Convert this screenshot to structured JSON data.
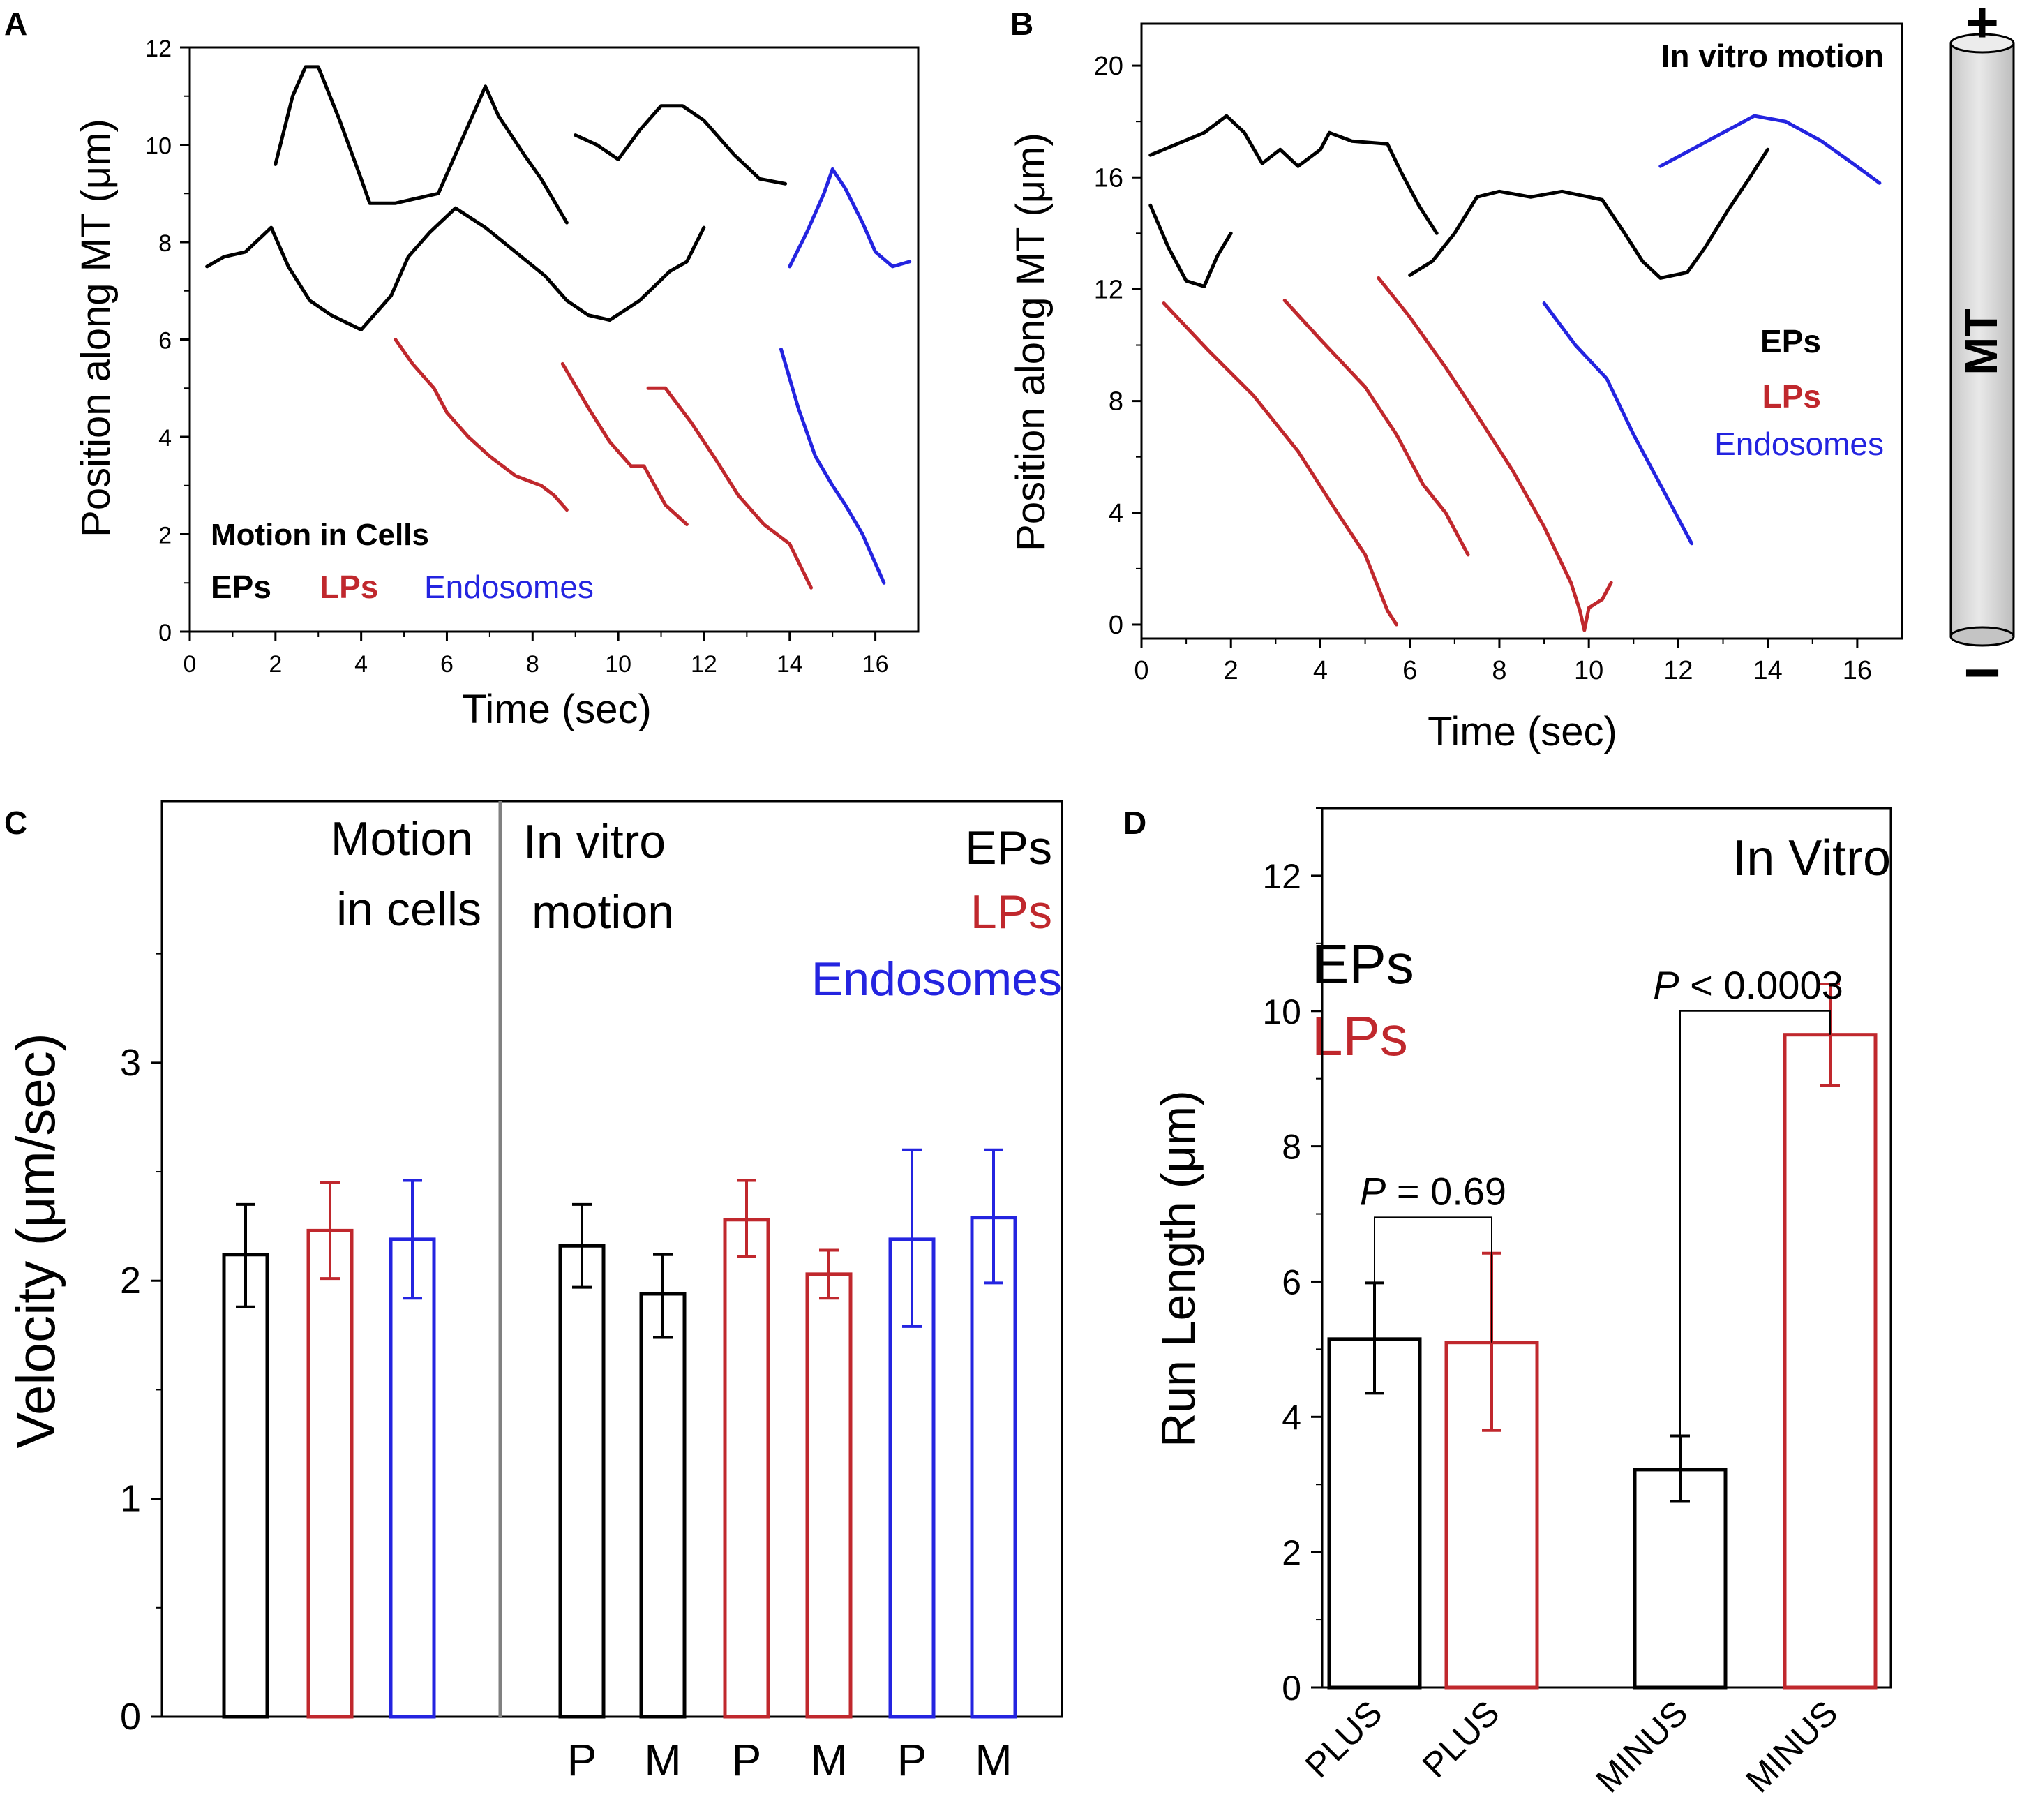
{
  "colors": {
    "eps": "#000000",
    "lps": "#c0282d",
    "endosomes": "#2424e0",
    "divider": "#808080"
  },
  "chart_data": [
    {
      "panel": "A",
      "type": "line",
      "xlabel": "Time (sec)",
      "ylabel": "Position along MT (μm)",
      "xlim": [
        0,
        17
      ],
      "ylim": [
        0,
        12
      ],
      "xticks": [
        0,
        2,
        4,
        6,
        8,
        10,
        12,
        14,
        16
      ],
      "yticks": [
        0,
        2,
        4,
        6,
        8,
        10,
        12
      ],
      "annotation": "Motion in Cells",
      "legend": [
        {
          "label": "EPs",
          "key": "eps"
        },
        {
          "label": "LPs",
          "key": "lps"
        },
        {
          "label": "Endosomes",
          "key": "endosomes"
        }
      ],
      "series": [
        {
          "key": "eps",
          "points": [
            [
              2.0,
              9.6
            ],
            [
              2.4,
              11.0
            ],
            [
              2.7,
              11.6
            ],
            [
              3.0,
              11.6
            ],
            [
              3.5,
              10.5
            ],
            [
              4.0,
              9.3
            ],
            [
              4.2,
              8.8
            ],
            [
              4.8,
              8.8
            ],
            [
              5.3,
              8.9
            ],
            [
              5.8,
              9.0
            ],
            [
              6.3,
              10.0
            ],
            [
              6.9,
              11.2
            ],
            [
              7.2,
              10.6
            ],
            [
              7.8,
              9.8
            ],
            [
              8.2,
              9.3
            ],
            [
              8.8,
              8.4
            ]
          ]
        },
        {
          "key": "eps",
          "points": [
            [
              0.4,
              7.5
            ],
            [
              0.8,
              7.7
            ],
            [
              1.3,
              7.8
            ],
            [
              1.9,
              8.3
            ],
            [
              2.3,
              7.5
            ],
            [
              2.8,
              6.8
            ],
            [
              3.3,
              6.5
            ],
            [
              4.0,
              6.2
            ],
            [
              4.7,
              6.9
            ],
            [
              5.1,
              7.7
            ],
            [
              5.6,
              8.2
            ],
            [
              6.2,
              8.7
            ],
            [
              6.9,
              8.3
            ],
            [
              7.6,
              7.8
            ],
            [
              8.3,
              7.3
            ],
            [
              8.8,
              6.8
            ],
            [
              9.3,
              6.5
            ],
            [
              9.8,
              6.4
            ],
            [
              10.5,
              6.8
            ],
            [
              11.2,
              7.4
            ],
            [
              11.6,
              7.6
            ],
            [
              12.0,
              8.3
            ]
          ]
        },
        {
          "key": "eps",
          "points": [
            [
              9.0,
              10.2
            ],
            [
              9.5,
              10.0
            ],
            [
              10.0,
              9.7
            ],
            [
              10.5,
              10.3
            ],
            [
              11.0,
              10.8
            ],
            [
              11.5,
              10.8
            ],
            [
              12.0,
              10.5
            ],
            [
              12.7,
              9.8
            ],
            [
              13.3,
              9.3
            ],
            [
              13.9,
              9.2
            ]
          ]
        },
        {
          "key": "lps",
          "points": [
            [
              4.8,
              6.0
            ],
            [
              5.2,
              5.5
            ],
            [
              5.7,
              5.0
            ],
            [
              6.0,
              4.5
            ],
            [
              6.5,
              4.0
            ],
            [
              7.0,
              3.6
            ],
            [
              7.6,
              3.2
            ],
            [
              8.2,
              3.0
            ],
            [
              8.5,
              2.8
            ],
            [
              8.8,
              2.5
            ]
          ]
        },
        {
          "key": "lps",
          "points": [
            [
              8.7,
              5.5
            ],
            [
              9.3,
              4.6
            ],
            [
              9.8,
              3.9
            ],
            [
              10.3,
              3.4
            ],
            [
              10.6,
              3.4
            ],
            [
              11.1,
              2.6
            ],
            [
              11.6,
              2.2
            ]
          ]
        },
        {
          "key": "lps",
          "points": [
            [
              10.7,
              5.0
            ],
            [
              11.1,
              5.0
            ],
            [
              11.7,
              4.3
            ],
            [
              12.3,
              3.5
            ],
            [
              12.8,
              2.8
            ],
            [
              13.4,
              2.2
            ],
            [
              14.0,
              1.8
            ],
            [
              14.5,
              0.9
            ]
          ]
        },
        {
          "key": "endosomes",
          "points": [
            [
              13.8,
              5.8
            ],
            [
              14.2,
              4.6
            ],
            [
              14.6,
              3.6
            ],
            [
              15.0,
              3.0
            ],
            [
              15.3,
              2.6
            ],
            [
              15.7,
              2.0
            ],
            [
              16.2,
              1.0
            ]
          ]
        },
        {
          "key": "endosomes",
          "points": [
            [
              14.0,
              7.5
            ],
            [
              14.4,
              8.2
            ],
            [
              14.8,
              9.0
            ],
            [
              15.0,
              9.5
            ],
            [
              15.3,
              9.1
            ],
            [
              15.7,
              8.4
            ],
            [
              16.0,
              7.8
            ],
            [
              16.4,
              7.5
            ],
            [
              16.8,
              7.6
            ]
          ]
        }
      ]
    },
    {
      "panel": "B",
      "type": "line",
      "xlabel": "Time (sec)",
      "ylabel": "Position along MT (μm)",
      "xlim": [
        0,
        17
      ],
      "ylim": [
        -0.5,
        21.5
      ],
      "xticks": [
        0,
        2,
        4,
        6,
        8,
        10,
        12,
        14,
        16
      ],
      "yticks": [
        0,
        4,
        8,
        12,
        16,
        20
      ],
      "annotation": "In vitro motion",
      "legend": [
        {
          "label": "EPs",
          "key": "eps"
        },
        {
          "label": "LPs",
          "key": "lps"
        },
        {
          "label": "Endosomes",
          "key": "endosomes"
        }
      ],
      "series": [
        {
          "key": "eps",
          "points": [
            [
              0.2,
              16.8
            ],
            [
              0.8,
              17.2
            ],
            [
              1.4,
              17.6
            ],
            [
              1.9,
              18.2
            ],
            [
              2.3,
              17.6
            ],
            [
              2.7,
              16.5
            ],
            [
              3.1,
              17.0
            ],
            [
              3.5,
              16.4
            ],
            [
              4.0,
              17.0
            ],
            [
              4.2,
              17.6
            ],
            [
              4.7,
              17.3
            ],
            [
              5.5,
              17.2
            ],
            [
              5.8,
              16.2
            ],
            [
              6.2,
              15.0
            ],
            [
              6.6,
              14.0
            ]
          ]
        },
        {
          "key": "eps",
          "points": [
            [
              0.2,
              15.0
            ],
            [
              0.6,
              13.5
            ],
            [
              1.0,
              12.3
            ],
            [
              1.4,
              12.1
            ],
            [
              1.7,
              13.2
            ],
            [
              2.0,
              14.0
            ]
          ]
        },
        {
          "key": "eps",
          "points": [
            [
              6.0,
              12.5
            ],
            [
              6.5,
              13.0
            ],
            [
              7.0,
              14.0
            ],
            [
              7.5,
              15.3
            ],
            [
              8.0,
              15.5
            ],
            [
              8.7,
              15.3
            ],
            [
              9.4,
              15.5
            ],
            [
              10.3,
              15.2
            ],
            [
              10.8,
              14.0
            ],
            [
              11.2,
              13.0
            ],
            [
              11.6,
              12.4
            ],
            [
              12.2,
              12.6
            ],
            [
              12.6,
              13.5
            ],
            [
              13.1,
              14.8
            ],
            [
              13.6,
              16.0
            ],
            [
              14.0,
              17.0
            ]
          ]
        },
        {
          "key": "lps",
          "points": [
            [
              0.5,
              11.5
            ],
            [
              1.5,
              9.8
            ],
            [
              2.5,
              8.2
            ],
            [
              3.5,
              6.2
            ],
            [
              4.3,
              4.2
            ],
            [
              5.0,
              2.5
            ],
            [
              5.5,
              0.5
            ],
            [
              5.7,
              0.0
            ]
          ]
        },
        {
          "key": "lps",
          "points": [
            [
              3.2,
              11.6
            ],
            [
              4.0,
              10.2
            ],
            [
              5.0,
              8.5
            ],
            [
              5.7,
              6.8
            ],
            [
              6.3,
              5.0
            ],
            [
              6.8,
              4.0
            ],
            [
              7.3,
              2.5
            ]
          ]
        },
        {
          "key": "lps",
          "points": [
            [
              5.3,
              12.4
            ],
            [
              6.0,
              11.0
            ],
            [
              6.8,
              9.2
            ],
            [
              7.5,
              7.5
            ],
            [
              8.3,
              5.5
            ],
            [
              9.0,
              3.5
            ],
            [
              9.6,
              1.5
            ],
            [
              9.8,
              0.5
            ],
            [
              9.9,
              -0.2
            ],
            [
              10.0,
              0.6
            ],
            [
              10.3,
              0.9
            ],
            [
              10.5,
              1.5
            ]
          ]
        },
        {
          "key": "endosomes",
          "points": [
            [
              9.0,
              11.5
            ],
            [
              9.7,
              10.0
            ],
            [
              10.4,
              8.8
            ],
            [
              11.0,
              6.8
            ],
            [
              11.6,
              5.0
            ],
            [
              12.3,
              2.9
            ]
          ]
        },
        {
          "key": "endosomes",
          "points": [
            [
              11.6,
              16.4
            ],
            [
              12.3,
              17.0
            ],
            [
              13.0,
              17.6
            ],
            [
              13.7,
              18.2
            ],
            [
              14.4,
              18.0
            ],
            [
              15.2,
              17.3
            ],
            [
              15.9,
              16.5
            ],
            [
              16.5,
              15.8
            ]
          ]
        }
      ]
    },
    {
      "panel": "C",
      "type": "bar",
      "ylabel": "Velocity (μm/sec)",
      "ylim": [
        0,
        4.2
      ],
      "yticks": [
        0,
        1,
        2,
        3
      ],
      "categories": [
        "",
        "",
        "",
        "P",
        "M",
        "P",
        "M",
        "P",
        "M"
      ],
      "groups": [
        {
          "title_lines": [
            "Motion",
            "in cells"
          ]
        },
        {
          "title_lines": [
            "In vitro",
            "motion"
          ]
        }
      ],
      "legend": [
        {
          "label": "EPs",
          "key": "eps"
        },
        {
          "label": "LPs",
          "key": "lps"
        },
        {
          "label": "Endosomes",
          "key": "endosomes"
        }
      ],
      "bars": [
        {
          "key": "eps",
          "value": 2.12,
          "low": 1.88,
          "high": 2.35
        },
        {
          "key": "lps",
          "value": 2.23,
          "low": 2.01,
          "high": 2.45
        },
        {
          "key": "endosomes",
          "value": 2.19,
          "low": 1.92,
          "high": 2.46
        },
        {
          "key": "eps",
          "value": 2.16,
          "low": 1.97,
          "high": 2.35
        },
        {
          "key": "eps",
          "value": 1.94,
          "low": 1.74,
          "high": 2.12
        },
        {
          "key": "lps",
          "value": 2.28,
          "low": 2.11,
          "high": 2.46
        },
        {
          "key": "lps",
          "value": 2.03,
          "low": 1.92,
          "high": 2.14
        },
        {
          "key": "endosomes",
          "value": 2.19,
          "low": 1.79,
          "high": 2.6
        },
        {
          "key": "endosomes",
          "value": 2.29,
          "low": 1.99,
          "high": 2.6
        }
      ]
    },
    {
      "panel": "D",
      "type": "bar",
      "title": "In Vitro",
      "ylabel": "Run Length (μm)",
      "ylim": [
        0,
        13
      ],
      "yticks": [
        0,
        2,
        4,
        6,
        8,
        10,
        12
      ],
      "categories": [
        "PLUS",
        "PLUS",
        "MINUS",
        "MINUS"
      ],
      "legend": [
        {
          "label": "EPs",
          "key": "eps"
        },
        {
          "label": "LPs",
          "key": "lps"
        }
      ],
      "bars": [
        {
          "key": "eps",
          "value": 5.15,
          "low": 4.35,
          "high": 5.98
        },
        {
          "key": "lps",
          "value": 5.1,
          "low": 3.8,
          "high": 6.42
        },
        {
          "key": "eps",
          "value": 3.22,
          "low": 2.75,
          "high": 3.72
        },
        {
          "key": "lps",
          "value": 9.65,
          "low": 8.9,
          "high": 10.4
        }
      ],
      "comparisons": [
        {
          "from": 0,
          "to": 1,
          "p_symbol": "P",
          "p_text": " = 0.69",
          "y": 6.95
        },
        {
          "from": 2,
          "to": 3,
          "p_symbol": "P",
          "p_text": " < 0.0003",
          "y": 10.0
        }
      ]
    }
  ],
  "panel_labels": [
    "A",
    "B",
    "C",
    "D"
  ],
  "mt_icon": {
    "label": "MT",
    "plus": "+",
    "minus": "−"
  }
}
